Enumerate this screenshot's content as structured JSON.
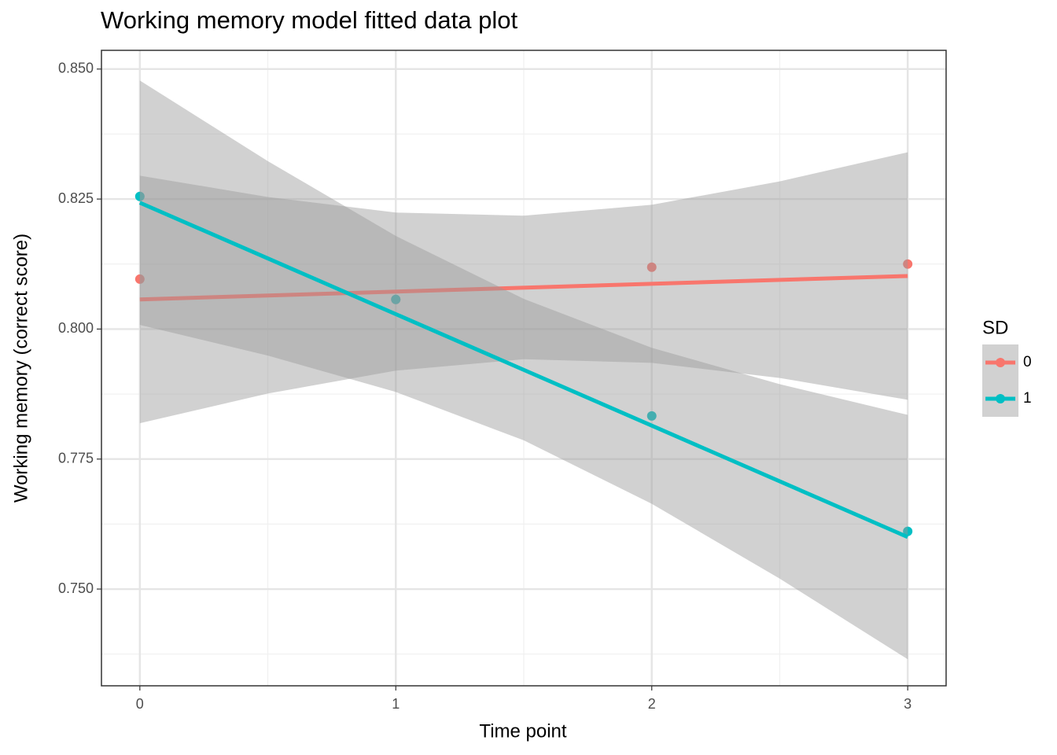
{
  "chart_data": {
    "type": "line",
    "title": "Working memory model fitted data plot",
    "x_label": "Time point",
    "y_label": "Working memory (correct score)",
    "legend_title": "SD",
    "legend_position": "right",
    "grid": true,
    "xlim": [
      -0.15,
      3.15
    ],
    "ylim": [
      0.7314,
      0.8536
    ],
    "xticks": [
      0,
      1,
      2,
      3
    ],
    "yticks": [
      {
        "value": 0.75,
        "label": "0.750"
      },
      {
        "value": 0.775,
        "label": "0.775"
      },
      {
        "value": 0.8,
        "label": "0.800"
      },
      {
        "value": 0.825,
        "label": "0.825"
      },
      {
        "value": 0.85,
        "label": "0.850"
      }
    ],
    "x": [
      0,
      1,
      2,
      3
    ],
    "fit_x": [
      0,
      3
    ],
    "band_x": [
      0,
      0.5,
      1,
      1.5,
      2,
      2.5,
      3
    ],
    "band_color": "#999999",
    "series": [
      {
        "name": "0",
        "color": "#F8766D",
        "values": [
          0.8096,
          0.8057,
          0.8119,
          0.8125
        ],
        "fit": [
          0.8057,
          0.8102
        ],
        "band_upper": [
          0.8295,
          0.8254,
          0.8224,
          0.8218,
          0.8239,
          0.8284,
          0.834
        ],
        "band_lower": [
          0.7819,
          0.7876,
          0.792,
          0.7942,
          0.7935,
          0.7906,
          0.7864
        ]
      },
      {
        "name": "1",
        "color": "#00BFC4",
        "values": [
          0.8255,
          0.8057,
          0.7833,
          0.7611
        ],
        "fit": [
          0.8243,
          0.76
        ],
        "band_upper": [
          0.8478,
          0.8323,
          0.8179,
          0.8058,
          0.7964,
          0.7894,
          0.7835
        ],
        "band_lower": [
          0.8008,
          0.7949,
          0.7879,
          0.7786,
          0.7664,
          0.752,
          0.7365
        ]
      }
    ]
  }
}
